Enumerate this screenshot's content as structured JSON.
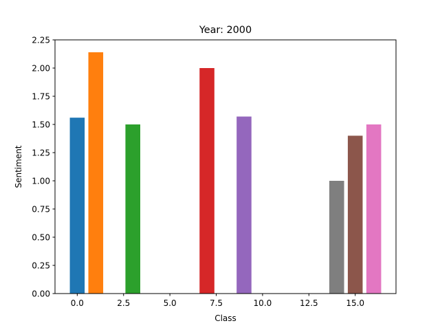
{
  "chart_data": {
    "type": "bar",
    "title": "Year: 2000",
    "xlabel": "Class",
    "ylabel": "Sentiment",
    "xlim": [
      -1.2,
      17.2
    ],
    "ylim": [
      0,
      2.25
    ],
    "x_ticks": [
      0.0,
      2.5,
      5.0,
      7.5,
      10.0,
      12.5,
      15.0
    ],
    "x_tick_labels": [
      "0.0",
      "2.5",
      "5.0",
      "7.5",
      "10.0",
      "12.5",
      "15.0"
    ],
    "y_ticks": [
      0.0,
      0.25,
      0.5,
      0.75,
      1.0,
      1.25,
      1.5,
      1.75,
      2.0,
      2.25
    ],
    "y_tick_labels": [
      "0.00",
      "0.25",
      "0.50",
      "0.75",
      "1.00",
      "1.25",
      "1.50",
      "1.75",
      "2.00",
      "2.25"
    ],
    "grid": false,
    "bar_width": 0.8,
    "bars": [
      {
        "x": 0,
        "value": 1.56,
        "color": "#1f77b4"
      },
      {
        "x": 1,
        "value": 2.14,
        "color": "#ff7f0e"
      },
      {
        "x": 3,
        "value": 1.5,
        "color": "#2ca02c"
      },
      {
        "x": 7,
        "value": 2.0,
        "color": "#d62728"
      },
      {
        "x": 9,
        "value": 1.57,
        "color": "#9467bd"
      },
      {
        "x": 14,
        "value": 1.0,
        "color": "#7f7f7f"
      },
      {
        "x": 15,
        "value": 1.4,
        "color": "#8c564b"
      },
      {
        "x": 16,
        "value": 1.5,
        "color": "#e377c2"
      }
    ]
  }
}
